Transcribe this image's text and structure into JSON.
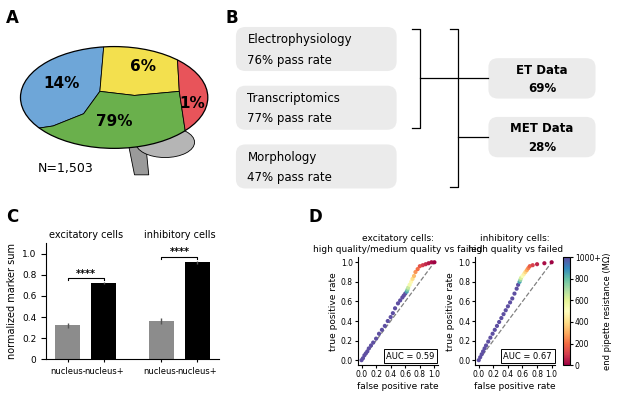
{
  "panel_labels": [
    "A",
    "B",
    "C",
    "D"
  ],
  "brain": {
    "regions": [
      {
        "label": "14%",
        "color": "#6ea6d8"
      },
      {
        "label": "6%",
        "color": "#f3e04e"
      },
      {
        "label": "79%",
        "color": "#6ab04c"
      },
      {
        "label": "1%",
        "color": "#e8545a"
      }
    ],
    "n_label": "N=1,503"
  },
  "pipeline": {
    "modalities": [
      {
        "name": "Electrophysiology",
        "rate": "76% pass rate"
      },
      {
        "name": "Transcriptomics",
        "rate": "77% pass rate"
      },
      {
        "name": "Morphology",
        "rate": "47% pass rate"
      }
    ],
    "outputs": [
      {
        "name": "ET Data",
        "rate": "69%"
      },
      {
        "name": "MET Data",
        "rate": "28%"
      }
    ]
  },
  "chart_data": [
    {
      "type": "bar",
      "y_label": "normalized marker sum",
      "ylim": [
        0,
        1.1
      ],
      "yticks": [
        0,
        0.2,
        0.4,
        0.6,
        0.8,
        {
          "value": 1,
          "label": "1.0"
        }
      ],
      "colors": [
        "#8c8c8c",
        "#000000"
      ],
      "groups": [
        {
          "title": "excitatory cells",
          "categories": [
            "nucleus-",
            "nucleus+"
          ],
          "values": [
            0.32,
            0.72
          ],
          "errors": [
            0.02,
            0.01
          ],
          "annotation": "****"
        },
        {
          "title": "inhibitory cells",
          "categories": [
            "nucleus-",
            "nucleus+"
          ],
          "values": [
            0.36,
            0.92
          ],
          "errors": [
            0.03,
            0.015
          ],
          "annotation": "****"
        }
      ]
    },
    {
      "type": "scatter",
      "title": "excitatory cells:\nhigh quality/medium quality vs failed",
      "x_label": "false positive rate",
      "y_label": "true positive rate",
      "xlim": [
        -0.05,
        1.05
      ],
      "ylim": [
        -0.05,
        1.05
      ],
      "xticks": [
        {
          "value": 0,
          "label": "0.0"
        },
        0.2,
        0.4,
        0.6,
        0.8,
        {
          "value": 1,
          "label": "1.0"
        }
      ],
      "yticks": [
        {
          "value": 0,
          "label": "0.0"
        },
        0.2,
        0.4,
        0.6,
        0.8,
        {
          "value": 1,
          "label": "1.0"
        }
      ],
      "x": [
        0,
        0.02,
        0.04,
        0.06,
        0.08,
        0.1,
        0.13,
        0.16,
        0.2,
        0.24,
        0.28,
        0.32,
        0.36,
        0.4,
        0.43,
        0.46,
        0.5,
        0.53,
        0.56,
        0.58,
        0.6,
        0.62,
        0.63,
        0.64,
        0.66,
        0.68,
        0.7,
        0.72,
        0.74,
        0.77,
        0.8,
        0.84,
        0.88,
        0.92,
        0.96,
        1.0
      ],
      "y": [
        0,
        0.02,
        0.05,
        0.07,
        0.09,
        0.12,
        0.15,
        0.18,
        0.22,
        0.27,
        0.31,
        0.35,
        0.4,
        0.44,
        0.48,
        0.53,
        0.58,
        0.61,
        0.64,
        0.66,
        0.68,
        0.7,
        0.72,
        0.74,
        0.77,
        0.8,
        0.83,
        0.86,
        0.9,
        0.93,
        0.96,
        0.97,
        0.98,
        0.99,
        1.0,
        1.0
      ],
      "end_pipette_resistance": [
        1000,
        1000,
        1000,
        1000,
        1000,
        1000,
        1000,
        1000,
        1000,
        1000,
        1000,
        1000,
        1000,
        1000,
        1000,
        1000,
        1000,
        1000,
        1000,
        1000,
        1000,
        850,
        750,
        650,
        550,
        480,
        400,
        330,
        260,
        200,
        150,
        100,
        70,
        40,
        20,
        0
      ],
      "annotation": "AUC = 0.59"
    },
    {
      "type": "scatter",
      "title": "inhibitory cells:\nhigh quality vs failed",
      "x_label": "false positive rate",
      "y_label": "true positive rate",
      "xlim": [
        -0.05,
        1.05
      ],
      "ylim": [
        -0.05,
        1.05
      ],
      "xticks": [
        {
          "value": 0,
          "label": "0.0"
        },
        0.2,
        0.4,
        0.6,
        0.8,
        {
          "value": 1,
          "label": "1.0"
        }
      ],
      "yticks": [
        {
          "value": 0,
          "label": "0.0"
        },
        0.2,
        0.4,
        0.6,
        0.8,
        {
          "value": 1,
          "label": "1.0"
        }
      ],
      "x": [
        0,
        0.02,
        0.04,
        0.06,
        0.08,
        0.1,
        0.13,
        0.16,
        0.19,
        0.22,
        0.25,
        0.28,
        0.31,
        0.34,
        0.37,
        0.4,
        0.43,
        0.46,
        0.49,
        0.52,
        0.54,
        0.56,
        0.57,
        0.58,
        0.6,
        0.62,
        0.64,
        0.66,
        0.68,
        0.7,
        0.74,
        0.8,
        0.9,
        1.0
      ],
      "y": [
        0,
        0.03,
        0.06,
        0.09,
        0.12,
        0.15,
        0.19,
        0.23,
        0.27,
        0.31,
        0.35,
        0.39,
        0.43,
        0.47,
        0.51,
        0.55,
        0.59,
        0.63,
        0.68,
        0.73,
        0.77,
        0.8,
        0.82,
        0.84,
        0.86,
        0.88,
        0.9,
        0.92,
        0.94,
        0.96,
        0.97,
        0.98,
        0.99,
        1.0
      ],
      "end_pipette_resistance": [
        1000,
        1000,
        1000,
        1000,
        1000,
        1000,
        1000,
        1000,
        1000,
        1000,
        1000,
        1000,
        1000,
        1000,
        1000,
        1000,
        1000,
        1000,
        1000,
        1000,
        1000,
        850,
        720,
        620,
        520,
        450,
        380,
        300,
        230,
        170,
        110,
        60,
        20,
        0
      ],
      "annotation": "AUC = 0.67",
      "colorbar": {
        "label": "end pipette resistance (MΩ)",
        "range": [
          0,
          1000
        ],
        "ticks": [
          0,
          200,
          400,
          600,
          800,
          {
            "value": 1000,
            "label": "1000+"
          }
        ]
      }
    }
  ]
}
